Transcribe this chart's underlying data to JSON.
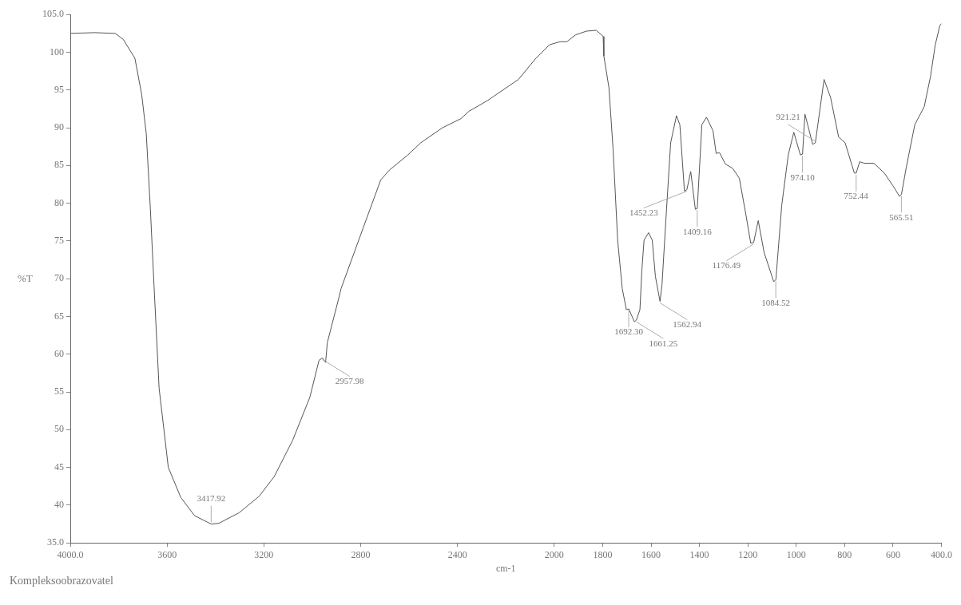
{
  "chart_data": {
    "type": "line",
    "xlabel": "cm-1",
    "ylabel": "%T",
    "xlim": [
      4000,
      400
    ],
    "xticks": [
      {
        "value": 4000,
        "label": "4000.0"
      },
      3600,
      3200,
      2800,
      2400,
      2000,
      1800,
      1600,
      1400,
      1200,
      1000,
      800,
      600,
      {
        "value": 400,
        "label": "400.0"
      }
    ],
    "ylim": [
      35,
      105
    ],
    "yticks": [
      {
        "value": 35,
        "label": "35.0"
      },
      40,
      45,
      50,
      55,
      60,
      65,
      70,
      75,
      80,
      85,
      90,
      95,
      100,
      {
        "value": 105,
        "label": "105.0"
      }
    ],
    "series": [
      {
        "color": "#555555",
        "x": [
          4000,
          3900,
          3814,
          3781,
          3733,
          3705,
          3686,
          3669,
          3654,
          3633,
          3595,
          3543,
          3486,
          3418,
          3386,
          3302,
          3219,
          3157,
          3081,
          3010,
          2972,
          2958,
          2945,
          2938,
          2890,
          2881,
          2790,
          2717,
          2681,
          2605,
          2552,
          2462,
          2386,
          2352,
          2276,
          2148,
          2076,
          2019,
          1976,
          1948,
          1912,
          1867,
          1826,
          1798,
          1795,
          1774,
          1757,
          1738,
          1719,
          1702,
          1692,
          1669,
          1661,
          1646,
          1638,
          1629,
          1610,
          1595,
          1582,
          1563,
          1555,
          1536,
          1519,
          1495,
          1481,
          1462,
          1452,
          1436,
          1417,
          1409,
          1390,
          1371,
          1344,
          1331,
          1317,
          1293,
          1262,
          1235,
          1207,
          1188,
          1176,
          1157,
          1133,
          1093,
          1084,
          1060,
          1033,
          1010,
          983,
          974,
          964,
          932,
          921,
          885,
          858,
          825,
          798,
          760,
          752,
          738,
          719,
          679,
          636,
          600,
          573,
          565,
          545,
          510,
          471,
          445,
          426,
          407,
          400
        ],
        "values": [
          102.5,
          102.6,
          102.5,
          101.7,
          99.2,
          94.4,
          89.2,
          79.2,
          69.1,
          55.5,
          45.0,
          41.0,
          38.6,
          37.5,
          37.6,
          39.0,
          41.2,
          43.8,
          48.6,
          54.3,
          59.2,
          59.5,
          58.9,
          61.5,
          67.5,
          68.7,
          76.7,
          83.1,
          84.4,
          86.4,
          88.0,
          90.0,
          91.2,
          92.2,
          93.6,
          96.4,
          99.2,
          101.0,
          101.4,
          101.4,
          102.3,
          102.8,
          102.9,
          102.1,
          99.5,
          95.3,
          87.2,
          75.1,
          68.7,
          65.9,
          66.0,
          64.3,
          64.5,
          65.9,
          71.1,
          75.1,
          76.1,
          75.1,
          70.3,
          67.0,
          69.1,
          79.2,
          88.0,
          91.6,
          90.4,
          81.6,
          81.8,
          84.2,
          79.2,
          79.3,
          90.4,
          91.4,
          89.6,
          86.6,
          86.7,
          85.2,
          84.6,
          83.3,
          78.3,
          74.7,
          74.8,
          77.7,
          73.5,
          69.6,
          69.9,
          79.7,
          86.4,
          89.4,
          86.4,
          86.5,
          91.8,
          87.8,
          88.0,
          96.4,
          94.0,
          88.8,
          88.0,
          84.0,
          84.0,
          85.5,
          85.3,
          85.3,
          84.0,
          82.3,
          80.9,
          81.2,
          84.8,
          90.4,
          92.8,
          96.8,
          100.9,
          103.5,
          103.8
        ]
      }
    ],
    "annotations": [
      {
        "text": "3417.92",
        "x": 3417.92,
        "y": 37.5
      },
      {
        "text": "2957.98",
        "x": 2957.98,
        "y": 59.5
      },
      {
        "text": "1692.30",
        "x": 1692.3,
        "y": 66.0
      },
      {
        "text": "1661.25",
        "x": 1661.25,
        "y": 64.5
      },
      {
        "text": "1562.94",
        "x": 1562.94,
        "y": 67.0
      },
      {
        "text": "1452.23",
        "x": 1452.23,
        "y": 81.8
      },
      {
        "text": "1409.16",
        "x": 1409.16,
        "y": 79.3
      },
      {
        "text": "1176.49",
        "x": 1176.49,
        "y": 74.8
      },
      {
        "text": "1084.52",
        "x": 1084.52,
        "y": 69.9
      },
      {
        "text": "974.10",
        "x": 974.1,
        "y": 86.5
      },
      {
        "text": "921.21",
        "x": 921.21,
        "y": 88.0
      },
      {
        "text": "752.44",
        "x": 752.44,
        "y": 84.0
      },
      {
        "text": "565.51",
        "x": 565.51,
        "y": 81.2
      },
      "Kompleksoobrazovatel"
    ]
  }
}
